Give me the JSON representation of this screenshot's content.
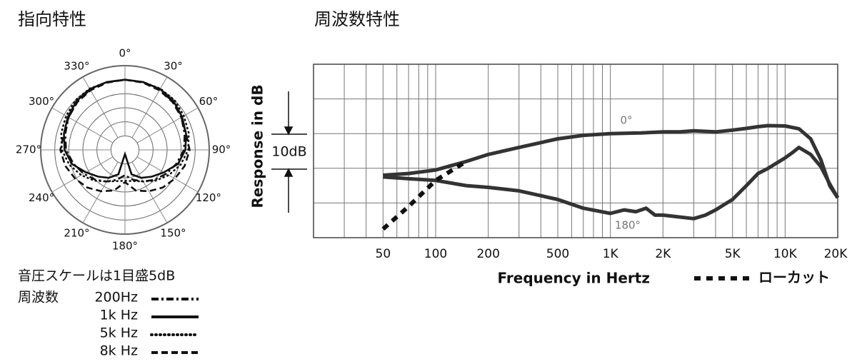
{
  "chart_data": [
    {
      "type": "polar",
      "title": "指向特性",
      "theta": [
        0,
        15,
        30,
        45,
        60,
        75,
        90,
        105,
        120,
        135,
        150,
        165,
        180,
        195,
        210,
        225,
        240,
        255,
        270,
        285,
        300,
        315,
        330,
        345
      ],
      "angle_ticks": [
        {
          "value": 0,
          "label": "0°"
        },
        {
          "value": 30,
          "label": "30°"
        },
        {
          "value": 60,
          "label": "60°"
        },
        {
          "value": 90,
          "label": "90°"
        },
        {
          "value": 120,
          "label": "120°"
        },
        {
          "value": 150,
          "label": "150°"
        },
        {
          "value": 180,
          "label": "180°"
        },
        {
          "value": 210,
          "label": "210°"
        },
        {
          "value": 240,
          "label": "240°"
        },
        {
          "value": 270,
          "label": "270°"
        },
        {
          "value": 300,
          "label": "300°"
        },
        {
          "value": 330,
          "label": "330°"
        }
      ],
      "rlim": [
        -25,
        5
      ],
      "rticks": [
        -20,
        -15,
        -10,
        -5,
        0,
        5
      ],
      "scale_note": "音圧スケールは1目盛5dB",
      "legend_title": "周波数",
      "series": [
        {
          "name": "200Hz",
          "color": "#111111",
          "line_style": "dashdot",
          "values": [
            0,
            0,
            -0.2,
            -0.8,
            -1.8,
            -3,
            -4,
            -6,
            -8,
            -10,
            -12,
            -14,
            -16,
            -14,
            -12,
            -10,
            -8,
            -6,
            -4,
            -3,
            -1.8,
            -0.8,
            -0.2,
            0
          ]
        },
        {
          "name": "1k Hz",
          "color": "#111111",
          "line_style": "solid",
          "values": [
            0,
            0,
            0,
            -0.5,
            -1.5,
            -2.5,
            -3.5,
            -5.5,
            -9,
            -11.5,
            -13.5,
            -16,
            -23.5,
            -16,
            -13.5,
            -11.5,
            -9,
            -5.5,
            -3.5,
            -2.5,
            -1.5,
            -0.5,
            0,
            0
          ]
        },
        {
          "name": "5k Hz",
          "color": "#111111",
          "line_style": "dotted",
          "values": [
            0,
            0,
            0.2,
            0,
            -0.8,
            -1.5,
            -2.5,
            -4.5,
            -7,
            -9.5,
            -12,
            -13.5,
            -14,
            -13.5,
            -12,
            -9.5,
            -7,
            -4.5,
            -2.5,
            -1.5,
            -0.8,
            0,
            0.2,
            0
          ]
        },
        {
          "name": "8k Hz",
          "color": "#111111",
          "line_style": "dashed",
          "values": [
            0,
            -0.2,
            -0.5,
            -1,
            -1.8,
            -2.5,
            -2,
            -3,
            -4.5,
            -6,
            -8,
            -10,
            -13.5,
            -10,
            -8,
            -6,
            -4.5,
            -3,
            -2,
            -2.5,
            -1.8,
            -1,
            -0.5,
            -0.2
          ]
        }
      ]
    },
    {
      "type": "line",
      "title": "周波数特性",
      "xscale": "log",
      "xlabel": "Frequency in Hertz",
      "ylabel": "Response in dB",
      "annotation": "10dB",
      "xlim": [
        20,
        20000
      ],
      "ylim": [
        -30,
        20
      ],
      "xticks": [
        50,
        100,
        200,
        500,
        {
          "value": 1000,
          "label": "1K"
        },
        {
          "value": 2000,
          "label": "2K"
        },
        {
          "value": 5000,
          "label": "5K"
        },
        {
          "value": 10000,
          "label": "10K"
        },
        {
          "value": 20000,
          "label": "20K"
        }
      ],
      "xgrid": [
        20,
        30,
        40,
        50,
        60,
        70,
        80,
        90,
        100,
        200,
        300,
        400,
        500,
        600,
        700,
        800,
        900,
        1000,
        2000,
        3000,
        4000,
        5000,
        6000,
        7000,
        8000,
        9000,
        10000,
        20000
      ],
      "ygrid": [
        -30,
        -20,
        -10,
        0,
        10,
        20
      ],
      "series": [
        {
          "name": "0°",
          "color": "#333333",
          "line_style": "solid",
          "x": [
            50,
            70,
            100,
            150,
            200,
            300,
            500,
            700,
            1000,
            1500,
            2000,
            2500,
            3000,
            4000,
            5000,
            6000,
            7000,
            8000,
            10000,
            12000,
            14000,
            16000,
            18000,
            20000
          ],
          "values": [
            -12,
            -11.5,
            -10.5,
            -8,
            -6,
            -4,
            -1.5,
            -0.5,
            0,
            0.2,
            0.5,
            0.5,
            0.8,
            0.5,
            1,
            1.5,
            2,
            2.3,
            2.2,
            1.4,
            -1.5,
            -7.5,
            -15,
            -18.5
          ]
        },
        {
          "name": "180°",
          "color": "#333333",
          "line_style": "solid",
          "x": [
            50,
            70,
            100,
            150,
            200,
            300,
            500,
            700,
            1000,
            1200,
            1400,
            1600,
            1800,
            2000,
            3000,
            3500,
            4000,
            5000,
            6000,
            7000,
            8000,
            10000,
            11000,
            12000,
            14000,
            16000,
            18000,
            20000
          ],
          "values": [
            -12.5,
            -13,
            -13.5,
            -15,
            -15.5,
            -16.5,
            -19,
            -21.5,
            -23,
            -22,
            -22.5,
            -21.5,
            -23.5,
            -23.5,
            -24.5,
            -23.5,
            -22,
            -19,
            -15,
            -11.5,
            -10,
            -7,
            -5.5,
            -4,
            -6,
            -9.5,
            -14.5,
            -18.5
          ]
        },
        {
          "name": "ローカット",
          "color": "#111111",
          "line_style": "lowcut",
          "x": [
            50,
            70,
            100,
            150
          ],
          "values": [
            -27.5,
            -21,
            -13.5,
            -8
          ]
        }
      ]
    }
  ]
}
